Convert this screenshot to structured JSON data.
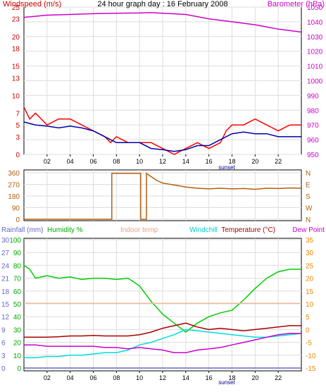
{
  "chart_data": [
    {
      "type": "line",
      "title": "24 hour graph day : 16 February 2008",
      "left_axis_label": "Windspeed (m/s)",
      "right_axis_label": "Barometer (hPa)",
      "x_tick_labels": [
        "02",
        "04",
        "06",
        "08",
        "10",
        "12",
        "14",
        "16",
        "18",
        "20",
        "22"
      ],
      "x_annotation": "sunset",
      "left_ylim": [
        0,
        25
      ],
      "left_ticks": [
        0,
        3,
        5,
        7,
        10,
        13,
        15,
        18,
        20,
        23,
        25
      ],
      "right_ylim": [
        950,
        1050
      ],
      "right_ticks": [
        950,
        960,
        970,
        980,
        990,
        1000,
        1010,
        1020,
        1030,
        1040,
        1050
      ],
      "grid": true,
      "colors": {
        "gust": "#ff0000",
        "average": "#0000aa",
        "barometer": "#cc00cc",
        "left_axis": "#cc0000",
        "right_axis": "#cc00cc"
      },
      "series": [
        {
          "axis": "left",
          "x": [
            0,
            0.5,
            1,
            2,
            3,
            4,
            5,
            6,
            7,
            7.5,
            8,
            9,
            10,
            10.5,
            11,
            12,
            13,
            13.5,
            14,
            15,
            16,
            17,
            17.5,
            18,
            19,
            20,
            21,
            22,
            23,
            24
          ],
          "values": [
            8,
            6,
            7,
            5,
            6,
            6,
            5,
            4,
            3,
            2,
            3,
            2,
            2,
            2,
            2,
            1,
            0,
            0.5,
            1,
            2,
            1,
            2,
            4,
            5,
            5,
            6,
            5,
            4,
            5,
            5
          ]
        },
        {
          "axis": "left",
          "x": [
            0,
            1,
            2,
            3,
            4,
            5,
            6,
            7,
            8,
            9,
            10,
            11,
            12,
            13,
            14,
            15,
            16,
            17,
            18,
            19,
            20,
            21,
            22,
            23,
            24
          ],
          "values": [
            5.5,
            5,
            4.8,
            4.5,
            4.8,
            4.5,
            4,
            3,
            2,
            2,
            2,
            1,
            0.8,
            0.5,
            0.8,
            1.5,
            1.5,
            2.5,
            3.5,
            3.8,
            3.5,
            3.5,
            3,
            3,
            3
          ]
        },
        {
          "axis": "right",
          "x": [
            0,
            2,
            4,
            6,
            8,
            10,
            11,
            12,
            14,
            16,
            18,
            20,
            22,
            24
          ],
          "values": [
            1043,
            1044.5,
            1045,
            1045.5,
            1045.8,
            1046,
            1046.2,
            1045.8,
            1045,
            1042,
            1040,
            1038,
            1035,
            1033
          ]
        }
      ]
    },
    {
      "type": "line",
      "left_ticks": [
        0,
        90,
        180,
        270,
        360
      ],
      "right_tick_labels": [
        "N",
        "W",
        "S",
        "E",
        "N"
      ],
      "ylim": [
        0,
        360
      ],
      "colors": {
        "direction": "#b06010",
        "axis_text": "#b06010"
      },
      "series": [
        {
          "x": [
            0,
            7.6,
            7.6,
            10.1,
            10.1,
            10.6,
            10.6,
            11,
            11.5,
            12,
            13,
            14,
            15,
            16,
            17,
            18,
            19,
            20,
            21,
            22,
            23,
            24
          ],
          "values": [
            0,
            0,
            355,
            355,
            0,
            0,
            355,
            330,
            300,
            280,
            265,
            250,
            240,
            235,
            240,
            235,
            238,
            232,
            240,
            238,
            242,
            240
          ]
        }
      ]
    },
    {
      "type": "line",
      "legend": [
        "Rainfall (mm)",
        "Humidity %",
        "Indoor temp",
        "Windchill",
        "Temperature (°C)",
        "Dew Point"
      ],
      "x_tick_labels": [
        "02",
        "04",
        "06",
        "08",
        "10",
        "12",
        "14",
        "16",
        "18",
        "20",
        "22"
      ],
      "x_annotation": "sunset",
      "rainfall_ticks": [
        0,
        3,
        6,
        9,
        12,
        15,
        18,
        21,
        24,
        27,
        30
      ],
      "humidity_ticks": [
        0,
        10,
        20,
        30,
        40,
        50,
        60,
        70,
        80,
        90,
        100
      ],
      "temp_ticks": [
        -15,
        -10,
        -5,
        0,
        5,
        10,
        15,
        20,
        25,
        30,
        35
      ],
      "temp_ylim": [
        -15,
        35
      ],
      "colors": {
        "rainfall": "#6666cc",
        "humidity": "#00cc00",
        "indoor": "#f0b8a0",
        "windchill": "#00dddd",
        "temperature": "#aa0000",
        "dewpoint": "#cc00cc",
        "right_axis": "#ee8800"
      },
      "series": [
        {
          "name": "Humidity %",
          "x": [
            0,
            0.5,
            1,
            2,
            3,
            4,
            5,
            6,
            7,
            8,
            9,
            10,
            11,
            12,
            13,
            14,
            15,
            16,
            17,
            18,
            19,
            20,
            21,
            22,
            23,
            24
          ],
          "values": [
            80,
            77,
            70,
            72,
            70,
            71,
            69,
            70,
            70,
            69,
            70,
            64,
            52,
            42,
            35,
            28,
            35,
            40,
            43,
            45,
            53,
            62,
            70,
            75,
            77,
            77
          ]
        },
        {
          "name": "Indoor temp",
          "x": [
            0,
            24
          ],
          "values": [
            10.2,
            10.2
          ]
        },
        {
          "name": "Windchill",
          "x": [
            0,
            1,
            2,
            3,
            4,
            5,
            6,
            7,
            8,
            9,
            10,
            11,
            12,
            13,
            14,
            15,
            16,
            17,
            18,
            19,
            20,
            21,
            22,
            23,
            24
          ],
          "values": [
            -11,
            -11,
            -10.5,
            -10.5,
            -10,
            -10,
            -9.5,
            -9,
            -9,
            -8,
            -6,
            -5,
            -3.5,
            -2,
            0,
            -0.5,
            -1,
            -1.5,
            -2,
            -2.5,
            -3,
            -3,
            -2.5,
            -2,
            -1.5
          ]
        },
        {
          "name": "Temperature (°C)",
          "x": [
            0,
            1,
            2,
            3,
            4,
            5,
            6,
            7,
            8,
            9,
            10,
            11,
            12,
            13,
            14,
            15,
            16,
            17,
            18,
            19,
            20,
            21,
            22,
            23,
            24
          ],
          "values": [
            -3,
            -3,
            -3,
            -2.8,
            -2.5,
            -2.5,
            -2.3,
            -2.5,
            -2.5,
            -2.5,
            -2,
            -1,
            0.5,
            1.5,
            2.5,
            1,
            0,
            0.5,
            0,
            -0.5,
            0,
            0.5,
            1,
            1.5,
            1.5
          ]
        },
        {
          "name": "Dew Point",
          "x": [
            0,
            1,
            2,
            3,
            4,
            5,
            6,
            7,
            8,
            9,
            10,
            11,
            12,
            13,
            14,
            15,
            16,
            17,
            18,
            19,
            20,
            21,
            22,
            23,
            24
          ],
          "values": [
            -6,
            -6,
            -6.5,
            -6.5,
            -6.5,
            -6.5,
            -6.5,
            -7,
            -7,
            -7.5,
            -7,
            -7.5,
            -8,
            -9,
            -9,
            -8,
            -7.5,
            -7,
            -6,
            -5,
            -4,
            -3,
            -2,
            -1.5,
            -1.5
          ]
        },
        {
          "name": "Rainfall (mm)",
          "x": [
            0,
            24
          ],
          "values": [
            0,
            0
          ]
        }
      ]
    }
  ]
}
